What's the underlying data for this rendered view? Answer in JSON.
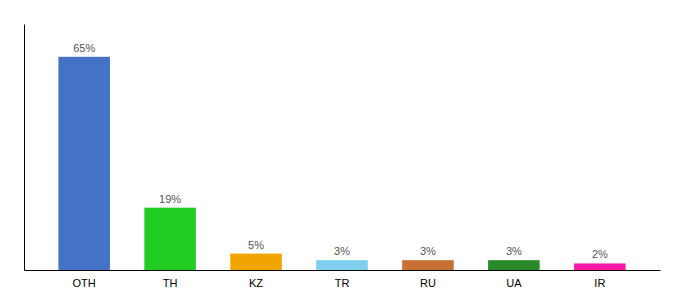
{
  "chart_data": {
    "type": "bar",
    "categories": [
      "OTH",
      "TH",
      "KZ",
      "TR",
      "RU",
      "UA",
      "IR"
    ],
    "values": [
      65,
      19,
      5,
      3,
      3,
      3,
      2
    ],
    "value_labels": [
      "65%",
      "19%",
      "5%",
      "3%",
      "3%",
      "3%",
      "2%"
    ],
    "colors": [
      "#4472c4",
      "#22cc22",
      "#f0a500",
      "#7ecfed",
      "#c87137",
      "#2a8a2a",
      "#ff1aaa"
    ],
    "ylim": [
      0,
      75
    ],
    "data_labels": true,
    "grid": false,
    "tick_labels": "x"
  }
}
